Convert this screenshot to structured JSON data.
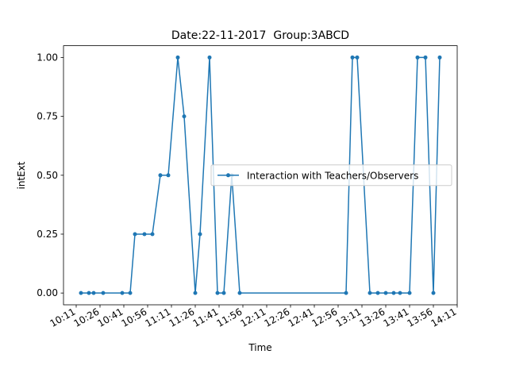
{
  "chart_data": {
    "type": "line",
    "title": "Date:22-11-2017  Group:3ABCD",
    "xlabel": "Time",
    "ylabel": "intExt",
    "x": [
      "10:14",
      "10:19",
      "10:22",
      "10:28",
      "10:40",
      "10:45",
      "10:48",
      "10:54",
      "10:59",
      "11:04",
      "11:09",
      "11:15",
      "11:19",
      "11:26",
      "11:29",
      "11:35",
      "11:40",
      "11:44",
      "11:49",
      "11:54",
      "13:01",
      "13:05",
      "13:08",
      "13:16",
      "13:21",
      "13:26",
      "13:31",
      "13:35",
      "13:41",
      "13:46",
      "13:51",
      "13:56",
      "14:00"
    ],
    "series": [
      {
        "name": "Interaction with Teachers/Observers",
        "color": "#1f77b4",
        "values": [
          0,
          0,
          0,
          0,
          0,
          0,
          0.25,
          0.25,
          0.25,
          0.5,
          0.5,
          1,
          0.75,
          0,
          0.25,
          1,
          0,
          0,
          0.5,
          0,
          0,
          1,
          1,
          0,
          0,
          0,
          0,
          0,
          0,
          1,
          1,
          0,
          1
        ]
      }
    ],
    "xlim": [
      "10:03",
      "14:11"
    ],
    "xticks": [
      "10:11",
      "10:26",
      "10:41",
      "10:56",
      "11:11",
      "11:26",
      "11:41",
      "11:56",
      "12:11",
      "12:26",
      "12:41",
      "12:56",
      "13:11",
      "13:26",
      "13:41",
      "13:56",
      "14:11"
    ],
    "ylim": [
      -0.05,
      1.05
    ],
    "yticks": [
      {
        "value": 0,
        "label": "0.00"
      },
      {
        "value": 0.25,
        "label": "0.25"
      },
      {
        "value": 0.5,
        "label": "0.50"
      },
      {
        "value": 0.75,
        "label": "0.75"
      },
      {
        "value": 1,
        "label": "1.00"
      }
    ],
    "legend": "center right"
  }
}
